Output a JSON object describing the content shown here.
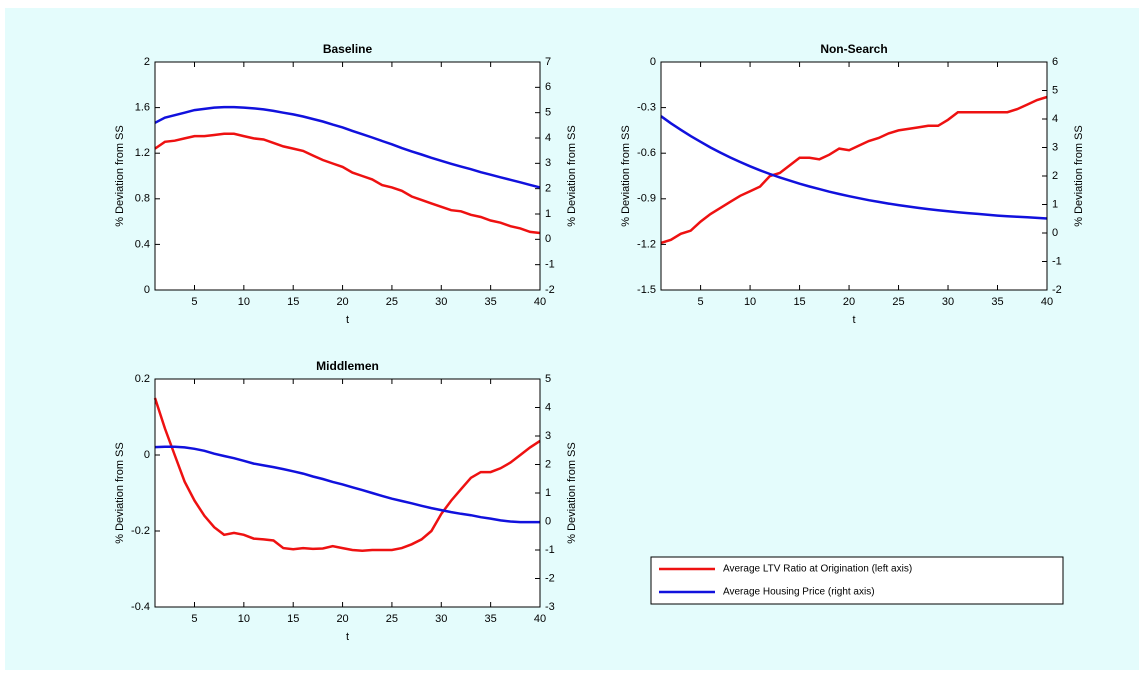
{
  "chart_data": [
    {
      "type": "line",
      "title": "Baseline",
      "xlabel": "t",
      "ylabel": "% Deviation from SS",
      "y2label": "% Deviation from SS",
      "x": [
        1,
        2,
        3,
        4,
        5,
        6,
        7,
        8,
        9,
        10,
        11,
        12,
        13,
        14,
        15,
        16,
        17,
        18,
        19,
        20,
        21,
        22,
        23,
        24,
        25,
        26,
        27,
        28,
        29,
        30,
        31,
        32,
        33,
        34,
        35,
        36,
        37,
        38,
        39,
        40
      ],
      "xlim": [
        1,
        40
      ],
      "xticks": [
        5,
        10,
        15,
        20,
        25,
        30,
        35,
        40
      ],
      "ylim": [
        0,
        2
      ],
      "yticks": [
        0,
        0.4,
        0.8,
        1.2,
        1.6,
        2
      ],
      "y2lim": [
        -2,
        7
      ],
      "y2ticks": [
        -2,
        -1,
        0,
        1,
        2,
        3,
        4,
        5,
        6,
        7
      ],
      "series": [
        {
          "name": "Average LTV Ratio at Origination (left axis)",
          "color": "#ee1111",
          "values": [
            1.24,
            1.3,
            1.31,
            1.33,
            1.35,
            1.35,
            1.36,
            1.37,
            1.37,
            1.35,
            1.33,
            1.32,
            1.29,
            1.26,
            1.24,
            1.22,
            1.18,
            1.14,
            1.11,
            1.08,
            1.03,
            1.0,
            0.97,
            0.92,
            0.9,
            0.87,
            0.82,
            0.79,
            0.76,
            0.73,
            0.7,
            0.69,
            0.66,
            0.64,
            0.61,
            0.59,
            0.56,
            0.54,
            0.51,
            0.5
          ]
        },
        {
          "name": "Average Housing Price (right axis)",
          "color": "#1111dd",
          "axis": "y2",
          "values": [
            4.6,
            4.8,
            4.9,
            5.0,
            5.1,
            5.15,
            5.2,
            5.22,
            5.22,
            5.2,
            5.17,
            5.13,
            5.07,
            5.0,
            4.93,
            4.85,
            4.75,
            4.65,
            4.53,
            4.42,
            4.28,
            4.15,
            4.02,
            3.88,
            3.75,
            3.6,
            3.47,
            3.35,
            3.22,
            3.1,
            2.98,
            2.87,
            2.77,
            2.65,
            2.55,
            2.45,
            2.35,
            2.25,
            2.15,
            2.05
          ]
        }
      ]
    },
    {
      "type": "line",
      "title": "Non-Search",
      "xlabel": "t",
      "ylabel": "% Deviation from SS",
      "y2label": "% Deviation from SS",
      "x": [
        1,
        2,
        3,
        4,
        5,
        6,
        7,
        8,
        9,
        10,
        11,
        12,
        13,
        14,
        15,
        16,
        17,
        18,
        19,
        20,
        21,
        22,
        23,
        24,
        25,
        26,
        27,
        28,
        29,
        30,
        31,
        32,
        33,
        34,
        35,
        36,
        37,
        38,
        39,
        40
      ],
      "xlim": [
        1,
        40
      ],
      "xticks": [
        5,
        10,
        15,
        20,
        25,
        30,
        35,
        40
      ],
      "ylim": [
        -1.5,
        0
      ],
      "yticks": [
        -1.5,
        -1.2,
        -0.9,
        -0.6,
        -0.3,
        0
      ],
      "y2lim": [
        -2,
        6
      ],
      "y2ticks": [
        -2,
        -1,
        0,
        1,
        2,
        3,
        4,
        5,
        6
      ],
      "series": [
        {
          "name": "Average LTV Ratio at Origination (left axis)",
          "color": "#ee1111",
          "values": [
            -1.19,
            -1.17,
            -1.13,
            -1.11,
            -1.05,
            -1.0,
            -0.96,
            -0.92,
            -0.88,
            -0.85,
            -0.82,
            -0.75,
            -0.73,
            -0.68,
            -0.63,
            -0.63,
            -0.64,
            -0.61,
            -0.57,
            -0.58,
            -0.55,
            -0.52,
            -0.5,
            -0.47,
            -0.45,
            -0.44,
            -0.43,
            -0.42,
            -0.42,
            -0.38,
            -0.33,
            -0.33,
            -0.33,
            -0.33,
            -0.33,
            -0.33,
            -0.31,
            -0.28,
            -0.25,
            -0.23
          ]
        },
        {
          "name": "Average Housing Price (right axis)",
          "color": "#1111dd",
          "axis": "y2",
          "values": [
            4.1,
            3.85,
            3.62,
            3.4,
            3.2,
            3.0,
            2.82,
            2.65,
            2.49,
            2.34,
            2.2,
            2.07,
            1.95,
            1.84,
            1.73,
            1.63,
            1.54,
            1.45,
            1.37,
            1.29,
            1.22,
            1.15,
            1.09,
            1.03,
            0.98,
            0.93,
            0.88,
            0.84,
            0.8,
            0.76,
            0.73,
            0.7,
            0.67,
            0.64,
            0.61,
            0.59,
            0.57,
            0.55,
            0.53,
            0.51
          ]
        }
      ]
    },
    {
      "type": "line",
      "title": "Middlemen",
      "xlabel": "t",
      "ylabel": "% Deviation from SS",
      "y2label": "% Deviation from SS",
      "x": [
        1,
        2,
        3,
        4,
        5,
        6,
        7,
        8,
        9,
        10,
        11,
        12,
        13,
        14,
        15,
        16,
        17,
        18,
        19,
        20,
        21,
        22,
        23,
        24,
        25,
        26,
        27,
        28,
        29,
        30,
        31,
        32,
        33,
        34,
        35,
        36,
        37,
        38,
        39,
        40
      ],
      "xlim": [
        1,
        40
      ],
      "xticks": [
        5,
        10,
        15,
        20,
        25,
        30,
        35,
        40
      ],
      "ylim": [
        -0.4,
        0.2
      ],
      "yticks": [
        -0.4,
        -0.2,
        0,
        0.2
      ],
      "y2lim": [
        -3,
        5
      ],
      "y2ticks": [
        -3,
        -2,
        -1,
        0,
        1,
        2,
        3,
        4,
        5
      ],
      "series": [
        {
          "name": "Average LTV Ratio at Origination (left axis)",
          "color": "#ee1111",
          "values": [
            0.15,
            0.07,
            0.0,
            -0.07,
            -0.12,
            -0.16,
            -0.19,
            -0.21,
            -0.205,
            -0.21,
            -0.22,
            -0.222,
            -0.225,
            -0.245,
            -0.248,
            -0.245,
            -0.247,
            -0.246,
            -0.24,
            -0.245,
            -0.25,
            -0.252,
            -0.25,
            -0.25,
            -0.25,
            -0.245,
            -0.235,
            -0.222,
            -0.2,
            -0.155,
            -0.12,
            -0.09,
            -0.06,
            -0.045,
            -0.045,
            -0.035,
            -0.02,
            0.0,
            0.02,
            0.037
          ]
        },
        {
          "name": "Average Housing Price (right axis)",
          "color": "#1111dd",
          "axis": "y2",
          "values": [
            2.61,
            2.62,
            2.62,
            2.6,
            2.55,
            2.48,
            2.38,
            2.3,
            2.22,
            2.13,
            2.03,
            1.97,
            1.91,
            1.84,
            1.76,
            1.68,
            1.58,
            1.49,
            1.39,
            1.3,
            1.2,
            1.1,
            1.0,
            0.9,
            0.8,
            0.72,
            0.64,
            0.55,
            0.47,
            0.4,
            0.33,
            0.27,
            0.22,
            0.15,
            0.1,
            0.04,
            0.0,
            -0.02,
            -0.02,
            -0.02
          ]
        }
      ]
    }
  ]
}
